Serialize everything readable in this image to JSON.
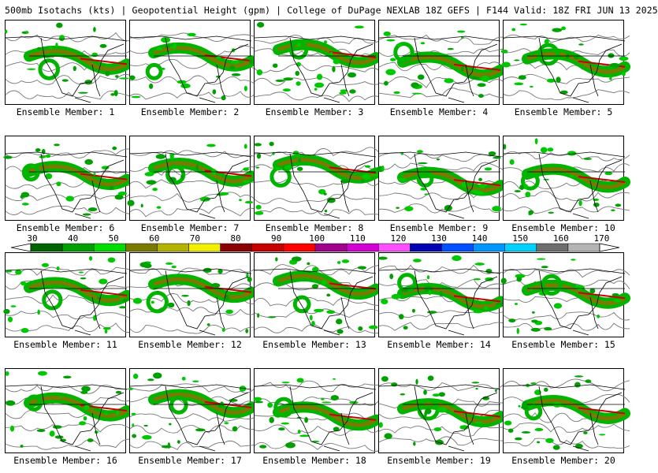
{
  "header": {
    "title": "500mb Isotachs (kts) | Geopotential Height (gpm) | College of DuPage NEXLAB  18Z GEFS | F144 Valid: 18Z FRI JUN 13 2025"
  },
  "members": [
    {
      "label": "Ensemble Member: 1"
    },
    {
      "label": "Ensemble Member: 2"
    },
    {
      "label": "Ensemble Member: 3"
    },
    {
      "label": "Ensemble Member: 4"
    },
    {
      "label": "Ensemble Member: 5"
    },
    {
      "label": "Ensemble Member: 6"
    },
    {
      "label": "Ensemble Member: 7"
    },
    {
      "label": "Ensemble Member: 8"
    },
    {
      "label": "Ensemble Member: 9"
    },
    {
      "label": "Ensemble Member: 10"
    },
    {
      "label": "Ensemble Member: 11"
    },
    {
      "label": "Ensemble Member: 12"
    },
    {
      "label": "Ensemble Member: 13"
    },
    {
      "label": "Ensemble Member: 14"
    },
    {
      "label": "Ensemble Member: 15"
    },
    {
      "label": "Ensemble Member: 16"
    },
    {
      "label": "Ensemble Member: 17"
    },
    {
      "label": "Ensemble Member: 18"
    },
    {
      "label": "Ensemble Member: 19"
    },
    {
      "label": "Ensemble Member: 20"
    }
  ],
  "colorbar": {
    "ticks": [
      "30",
      "40",
      "50",
      "60",
      "70",
      "80",
      "90",
      "100",
      "110",
      "120",
      "130",
      "140",
      "150",
      "160",
      "170"
    ],
    "colors": [
      "#006400",
      "#00a000",
      "#00dc00",
      "#7a7a00",
      "#b4b400",
      "#f0f000",
      "#8b0000",
      "#c80000",
      "#ff0000",
      "#a0008c",
      "#d200d2",
      "#ff50ff",
      "#0000b4",
      "#0050ff",
      "#0096ff",
      "#00d2ff",
      "#6e6e6e",
      "#b4b4b4"
    ]
  }
}
